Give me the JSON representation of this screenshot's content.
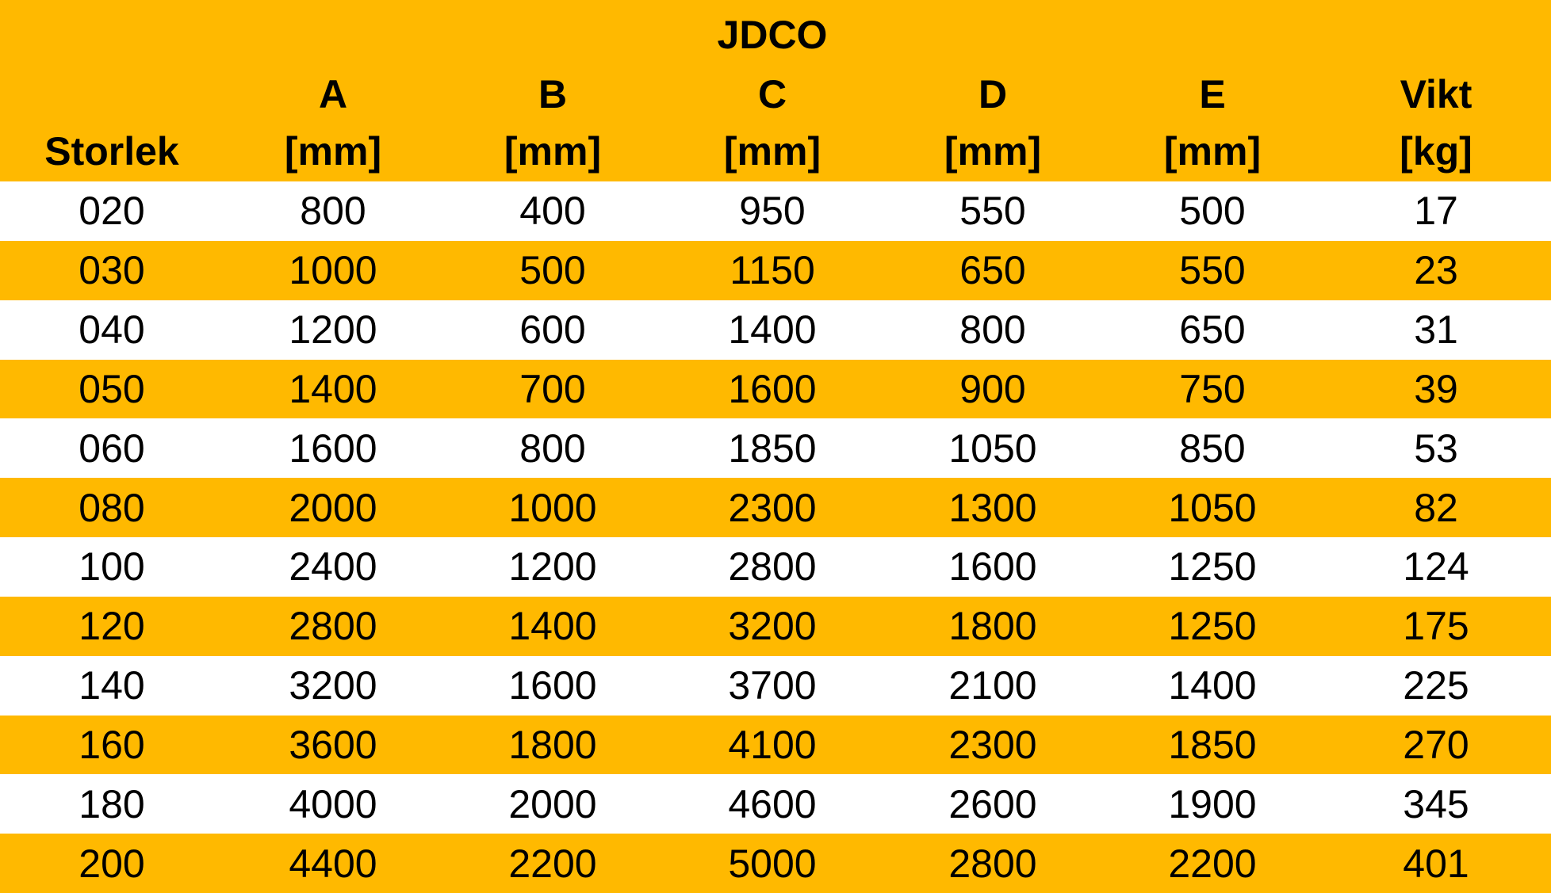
{
  "table": {
    "title": "JDCO",
    "columns": [
      {
        "label": "Storlek"
      },
      {
        "label": "A",
        "unit": "[mm]"
      },
      {
        "label": "B",
        "unit": "[mm]"
      },
      {
        "label": "C",
        "unit": "[mm]"
      },
      {
        "label": "D",
        "unit": "[mm]"
      },
      {
        "label": "E",
        "unit": "[mm]"
      },
      {
        "label": "Vikt",
        "unit": "[kg]"
      }
    ],
    "rows": [
      [
        "020",
        "800",
        "400",
        "950",
        "550",
        "500",
        "17"
      ],
      [
        "030",
        "1000",
        "500",
        "1150",
        "650",
        "550",
        "23"
      ],
      [
        "040",
        "1200",
        "600",
        "1400",
        "800",
        "650",
        "31"
      ],
      [
        "050",
        "1400",
        "700",
        "1600",
        "900",
        "750",
        "39"
      ],
      [
        "060",
        "1600",
        "800",
        "1850",
        "1050",
        "850",
        "53"
      ],
      [
        "080",
        "2000",
        "1000",
        "2300",
        "1300",
        "1050",
        "82"
      ],
      [
        "100",
        "2400",
        "1200",
        "2800",
        "1600",
        "1250",
        "124"
      ],
      [
        "120",
        "2800",
        "1400",
        "3200",
        "1800",
        "1250",
        "175"
      ],
      [
        "140",
        "3200",
        "1600",
        "3700",
        "2100",
        "1400",
        "225"
      ],
      [
        "160",
        "3600",
        "1800",
        "4100",
        "2300",
        "1850",
        "270"
      ],
      [
        "180",
        "4000",
        "2000",
        "4600",
        "2600",
        "1900",
        "345"
      ],
      [
        "200",
        "4400",
        "2200",
        "5000",
        "2800",
        "2200",
        "401"
      ]
    ]
  }
}
